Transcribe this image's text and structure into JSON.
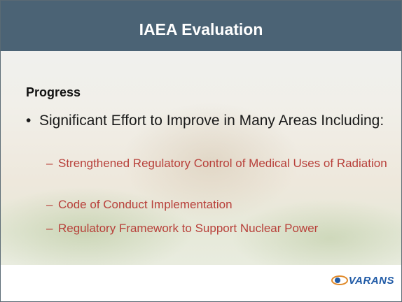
{
  "header": {
    "title": "IAEA Evaluation"
  },
  "body": {
    "heading": "Progress",
    "bullets": [
      {
        "text": "Significant Effort to Improve in Many Areas Including:",
        "sub_bullets": [
          "Strengthened Regulatory Control of Medical Uses of Radiation",
          "Code of Conduct Implementation",
          "Regulatory Framework to Support Nuclear Power"
        ]
      }
    ]
  },
  "footer": {
    "logo": "VARANS"
  }
}
